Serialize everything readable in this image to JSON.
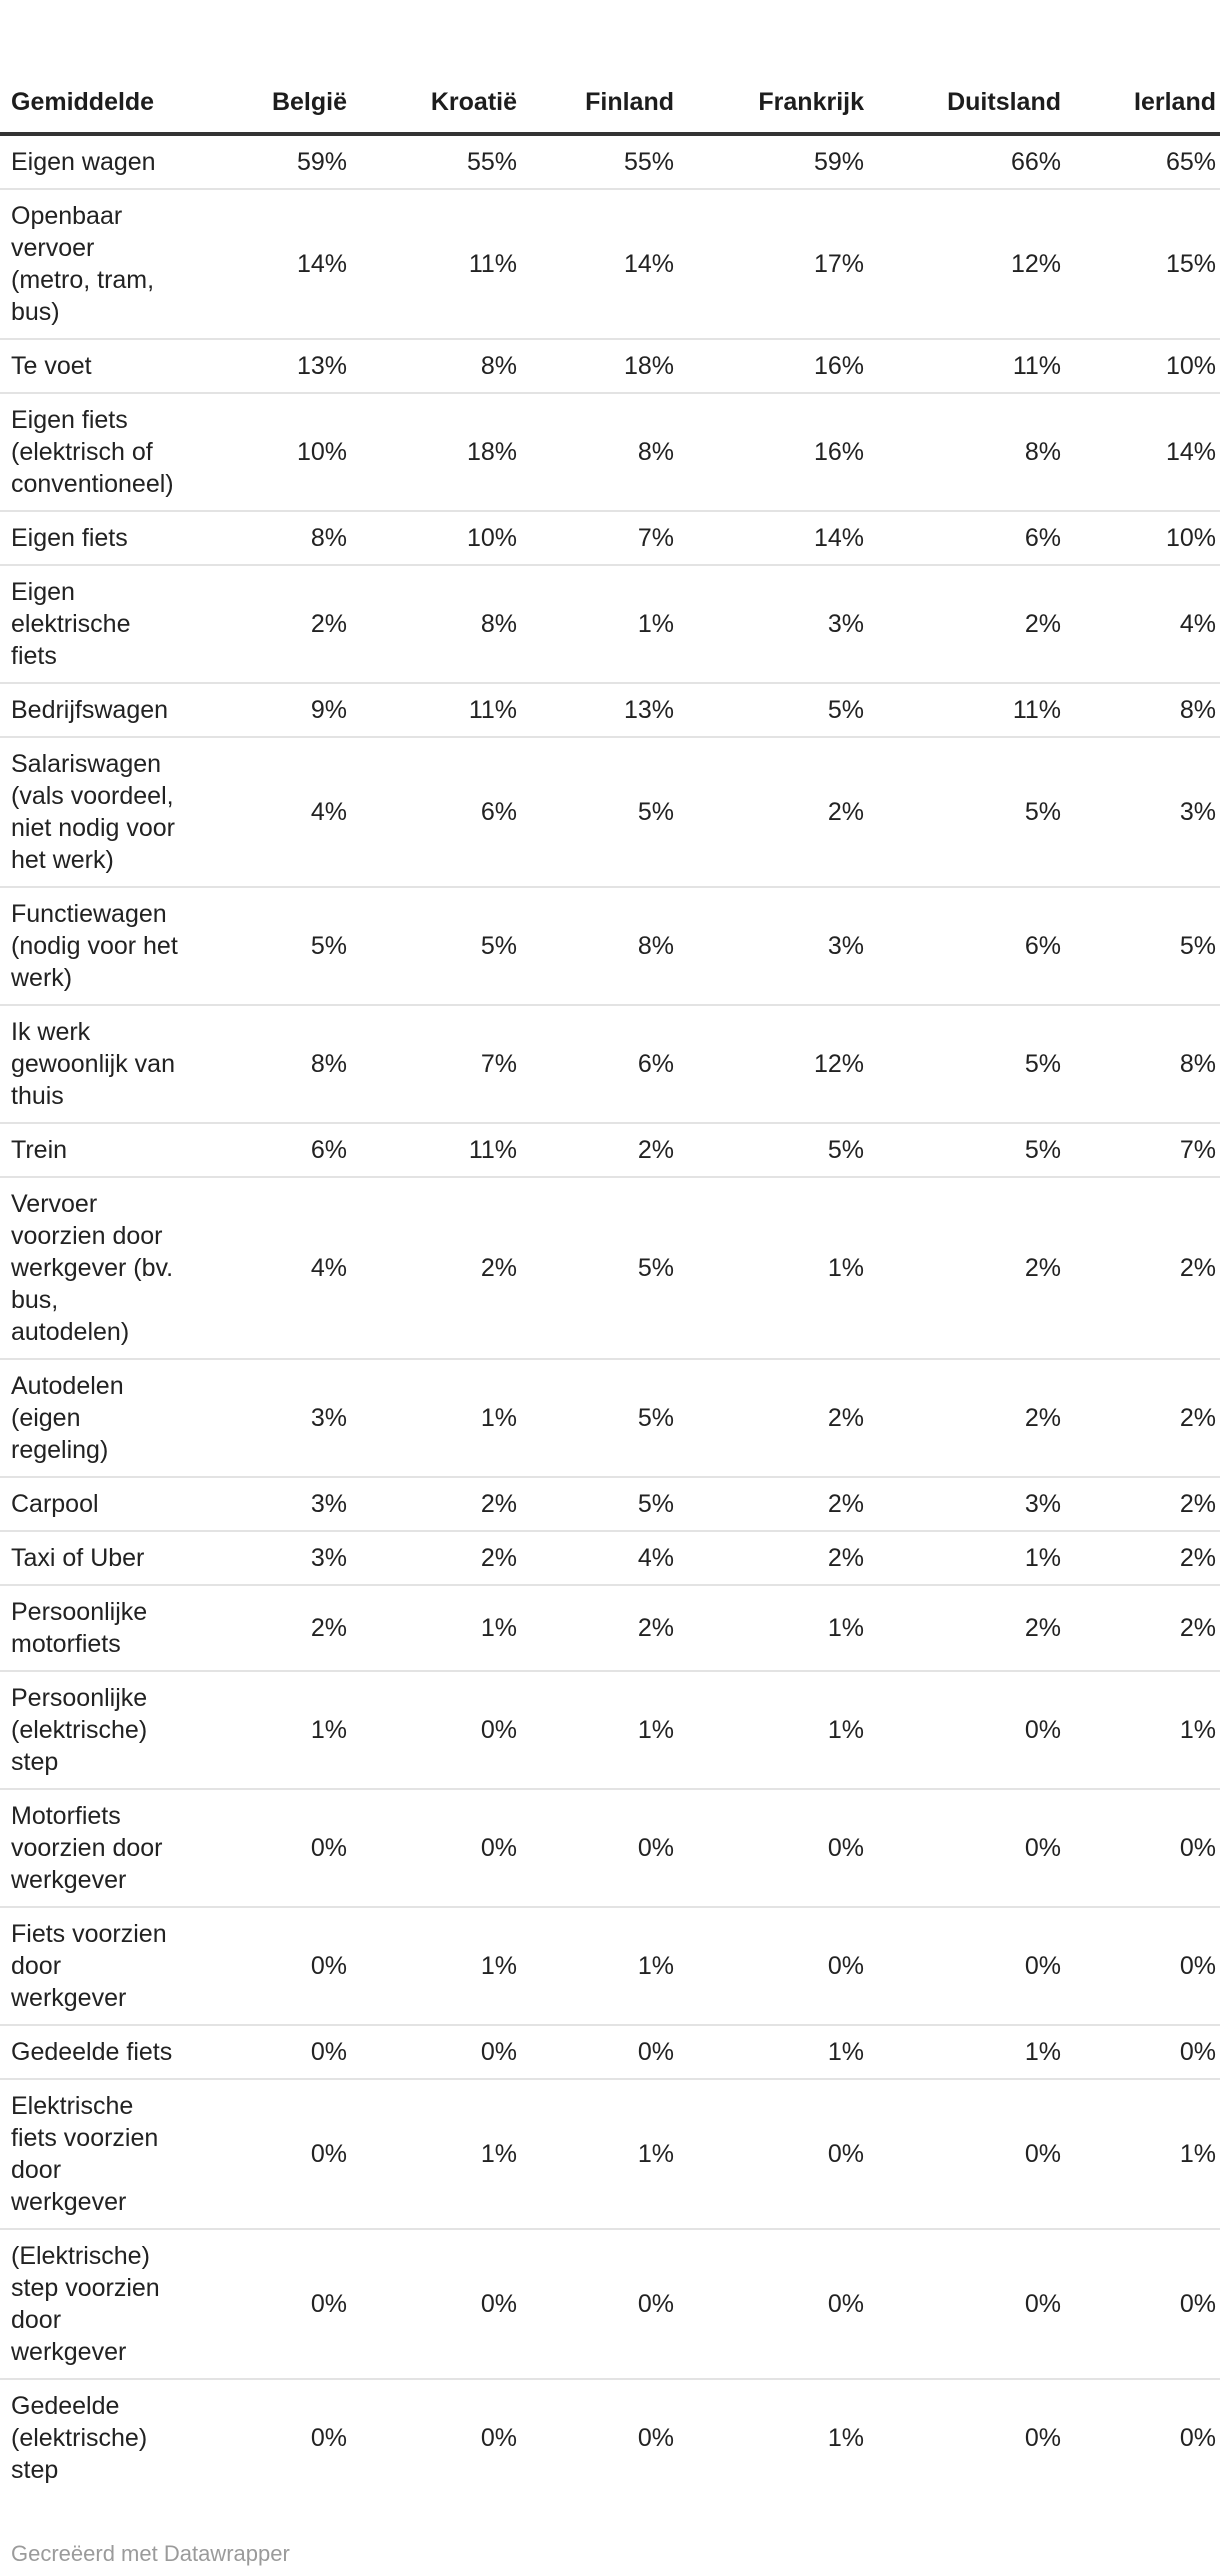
{
  "chart_data": {
    "type": "table",
    "title": "",
    "columns": [
      "Gemiddelde",
      "België",
      "Kroatië",
      "Finland",
      "Frankrijk",
      "Duitsland",
      "Ierland"
    ],
    "rows": [
      {
        "label": "Eigen wagen",
        "values": [
          "59%",
          "55%",
          "55%",
          "59%",
          "66%",
          "65%"
        ]
      },
      {
        "label": "Openbaar vervoer (metro, tram, bus)",
        "values": [
          "14%",
          "11%",
          "14%",
          "17%",
          "12%",
          "15%"
        ]
      },
      {
        "label": "Te voet",
        "values": [
          "13%",
          "8%",
          "18%",
          "16%",
          "11%",
          "10%"
        ]
      },
      {
        "label": "Eigen fiets (elektrisch of conventioneel)",
        "values": [
          "10%",
          "18%",
          "8%",
          "16%",
          "8%",
          "14%"
        ]
      },
      {
        "label": "Eigen fiets",
        "values": [
          "8%",
          "10%",
          "7%",
          "14%",
          "6%",
          "10%"
        ]
      },
      {
        "label": "Eigen elektrische fiets",
        "values": [
          "2%",
          "8%",
          "1%",
          "3%",
          "2%",
          "4%"
        ]
      },
      {
        "label": "Bedrijfswagen",
        "values": [
          "9%",
          "11%",
          "13%",
          "5%",
          "11%",
          "8%"
        ]
      },
      {
        "label": "Salariswagen (vals voordeel, niet nodig voor het werk)",
        "values": [
          "4%",
          "6%",
          "5%",
          "2%",
          "5%",
          "3%"
        ]
      },
      {
        "label": "Functiewagen (nodig voor het werk)",
        "values": [
          "5%",
          "5%",
          "8%",
          "3%",
          "6%",
          "5%"
        ]
      },
      {
        "label": "Ik werk gewoonlijk van thuis",
        "values": [
          "8%",
          "7%",
          "6%",
          "12%",
          "5%",
          "8%"
        ]
      },
      {
        "label": "Trein",
        "values": [
          "6%",
          "11%",
          "2%",
          "5%",
          "5%",
          "7%"
        ]
      },
      {
        "label": "Vervoer voorzien door werkgever (bv. bus, autodelen)",
        "values": [
          "4%",
          "2%",
          "5%",
          "1%",
          "2%",
          "2%"
        ]
      },
      {
        "label": "Autodelen (eigen regeling)",
        "values": [
          "3%",
          "1%",
          "5%",
          "2%",
          "2%",
          "2%"
        ]
      },
      {
        "label": "Carpool",
        "values": [
          "3%",
          "2%",
          "5%",
          "2%",
          "3%",
          "2%"
        ]
      },
      {
        "label": "Taxi of Uber",
        "values": [
          "3%",
          "2%",
          "4%",
          "2%",
          "1%",
          "2%"
        ]
      },
      {
        "label": "Persoonlijke motorfiets",
        "values": [
          "2%",
          "1%",
          "2%",
          "1%",
          "2%",
          "2%"
        ]
      },
      {
        "label": "Persoonlijke (elektrische) step",
        "values": [
          "1%",
          "0%",
          "1%",
          "1%",
          "0%",
          "1%"
        ]
      },
      {
        "label": "Motorfiets voorzien door werkgever",
        "values": [
          "0%",
          "0%",
          "0%",
          "0%",
          "0%",
          "0%"
        ]
      },
      {
        "label": "Fiets voorzien door werkgever",
        "values": [
          "0%",
          "1%",
          "1%",
          "0%",
          "0%",
          "0%"
        ]
      },
      {
        "label": "Gedeelde fiets",
        "values": [
          "0%",
          "0%",
          "0%",
          "1%",
          "1%",
          "0%"
        ]
      },
      {
        "label": "Elektrische fiets voorzien door werkgever",
        "values": [
          "0%",
          "1%",
          "1%",
          "0%",
          "0%",
          "1%"
        ]
      },
      {
        "label": "(Elektrische) step voorzien door werkgever",
        "values": [
          "0%",
          "0%",
          "0%",
          "0%",
          "0%",
          "0%"
        ]
      },
      {
        "label": "Gedeelde (elektrische) step",
        "values": [
          "0%",
          "0%",
          "0%",
          "1%",
          "0%",
          "0%"
        ]
      }
    ],
    "footer": "Gecreëerd met Datawrapper",
    "layout_hints": {
      "value_format": "percent",
      "first_column_align": "left",
      "value_columns_align": "right",
      "grid": "horizontal-only"
    }
  },
  "colors": {
    "header_text": "#1d1d1d",
    "body_text": "#222222",
    "header_rule": "#333333",
    "row_divider": "#e3e3e3",
    "attribution_text": "#9b9b9b",
    "background": "#ffffff"
  }
}
